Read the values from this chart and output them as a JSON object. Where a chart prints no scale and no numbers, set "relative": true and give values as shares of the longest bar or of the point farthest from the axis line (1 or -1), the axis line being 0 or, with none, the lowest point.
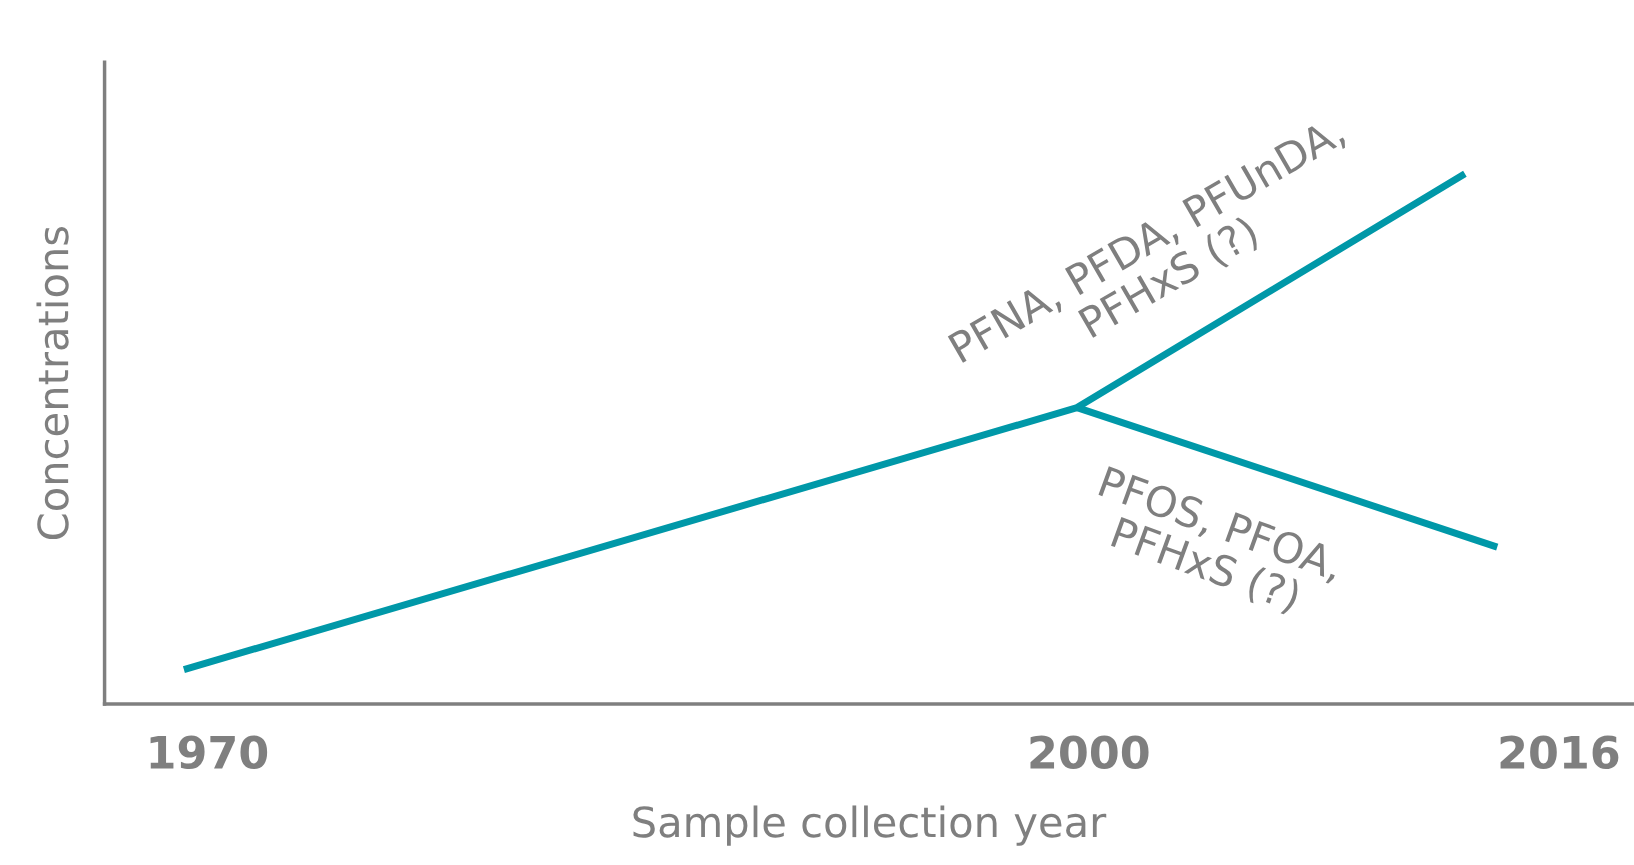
{
  "chart_data": {
    "type": "line",
    "relative": true,
    "xlabel": "Sample collection year",
    "ylabel": "Concentrations",
    "xlim": [
      1966.5,
      2018.5
    ],
    "xticks": [
      1970,
      2000,
      2016
    ],
    "grid": false,
    "legend": false,
    "marker": "none",
    "line_style": "solid",
    "series": [
      {
        "name": "PFNA, PFDA, PFUnDA,\nPFHxS (?)",
        "color": "#0098a8",
        "x": [
          1969.2,
          1999.6,
          2012.8
        ],
        "values": [
          0.065,
          0.559,
          1
        ]
      },
      {
        "name": "PFOS, PFOA,\nPFHxS (?)",
        "color": "#0098a8",
        "x": [
          1999.6,
          2013.9
        ],
        "values": [
          0.559,
          0.296
        ]
      }
    ]
  }
}
